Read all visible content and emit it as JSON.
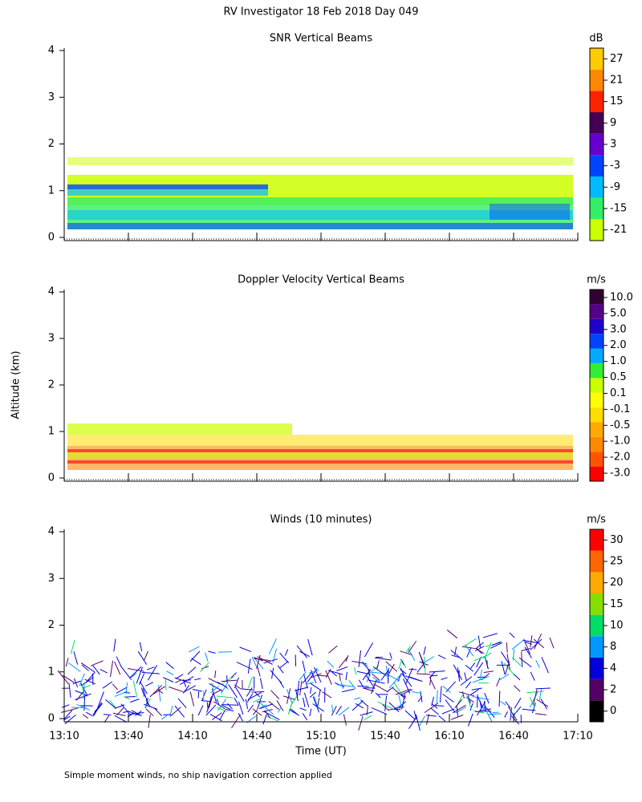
{
  "title": "RV Investigator  18 Feb 2018 Day 049",
  "y_axis_label": "Altitude (km)",
  "x_axis_label": "Time (UT)",
  "footnote": "Simple moment winds, no ship navigation correction applied",
  "chart_data": [
    {
      "type": "heatmap",
      "title": "SNR Vertical Beams",
      "ylim": [
        0,
        4
      ],
      "yticks": [
        0,
        1,
        2,
        3,
        4
      ],
      "xlim": [
        790,
        1030
      ],
      "xticks": [
        790,
        820,
        850,
        880,
        910,
        940,
        970,
        1000,
        1030
      ],
      "colorbar": {
        "unit": "dB",
        "labels": [
          "-21",
          "-15",
          "-9",
          "-3",
          "3",
          "9",
          "15",
          "21",
          "27"
        ],
        "colors": [
          "#ccff00",
          "#33ee66",
          "#00bbff",
          "#0044ff",
          "#6600cc",
          "#440055",
          "#ff2200",
          "#ff8800",
          "#ffcc00"
        ]
      }
    },
    {
      "type": "heatmap",
      "title": "Doppler Velocity Vertical Beams",
      "ylim": [
        0,
        4
      ],
      "yticks": [
        0,
        1,
        2,
        3,
        4
      ],
      "xlim": [
        790,
        1030
      ],
      "xticks": [
        790,
        820,
        850,
        880,
        910,
        940,
        970,
        1000,
        1030
      ],
      "colorbar": {
        "unit": "m/s",
        "labels": [
          "-3.0",
          "-2.0",
          "-1.0",
          "-0.5",
          "-0.1",
          "0.1",
          "0.5",
          "1.0",
          "2.0",
          "3.0",
          "5.0",
          "10.0"
        ],
        "colors": [
          "#ff0000",
          "#ff5500",
          "#ff8800",
          "#ffaa00",
          "#ffdd00",
          "#ffff00",
          "#ccff00",
          "#33ee33",
          "#00aaff",
          "#0044ff",
          "#2200cc",
          "#550088",
          "#330033"
        ]
      }
    },
    {
      "type": "barbs",
      "title": "Winds (10 minutes)",
      "ylim": [
        0,
        4
      ],
      "yticks": [
        0,
        1,
        2,
        3,
        4
      ],
      "xlim": [
        790,
        1030
      ],
      "xticks": [
        {
          "value": 790,
          "label": "13:10"
        },
        {
          "value": 820,
          "label": "13:40"
        },
        {
          "value": 850,
          "label": "14:10"
        },
        {
          "value": 880,
          "label": "14:40"
        },
        {
          "value": 910,
          "label": "15:10"
        },
        {
          "value": 940,
          "label": "15:40"
        },
        {
          "value": 970,
          "label": "16:10"
        },
        {
          "value": 1000,
          "label": "16:40"
        },
        {
          "value": 1030,
          "label": "17:10"
        }
      ],
      "colorbar": {
        "unit": "m/s",
        "labels": [
          "0",
          "2",
          "4",
          "8",
          "10",
          "15",
          "20",
          "25",
          "30"
        ],
        "colors": [
          "#000000",
          "#550066",
          "#0000dd",
          "#0099ff",
          "#00dd66",
          "#88dd00",
          "#ffaa00",
          "#ff6600",
          "#ff0000"
        ]
      }
    }
  ]
}
